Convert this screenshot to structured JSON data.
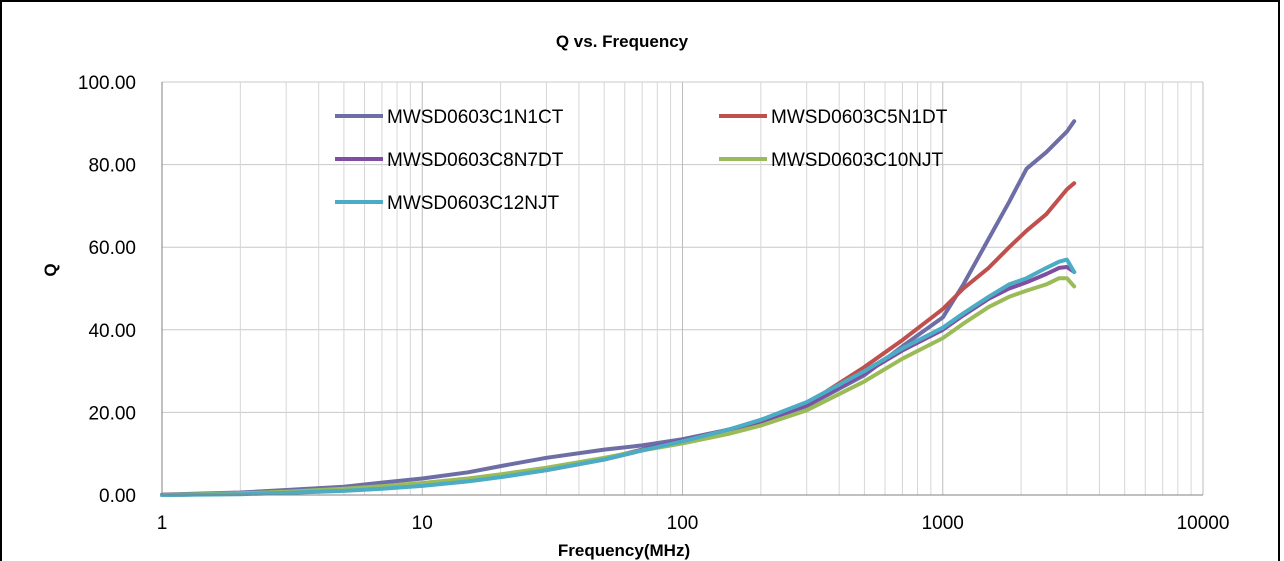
{
  "chart_data": {
    "type": "line",
    "title": "Q  vs.  Frequency",
    "xlabel": "Frequency(MHz)",
    "ylabel": "Q",
    "xscale": "log",
    "xlim": [
      1,
      10000
    ],
    "ylim": [
      0,
      100
    ],
    "grid": true,
    "legend_position": "top-left-inside",
    "x_ticks": [
      "1",
      "10",
      "100",
      "1000",
      "10000"
    ],
    "y_ticks": [
      "0.00",
      "20.00",
      "40.00",
      "60.00",
      "80.00",
      "100.00"
    ],
    "series": [
      {
        "name": "MWSD0603C1N1CT",
        "color": "#6e6ea6",
        "x": [
          1,
          2,
          3,
          5,
          7,
          10,
          15,
          20,
          30,
          50,
          70,
          100,
          150,
          200,
          300,
          500,
          700,
          1000,
          1200,
          1500,
          1800,
          2100,
          2500,
          3000,
          3200
        ],
        "y": [
          0.1,
          0.6,
          1.2,
          2.0,
          3.0,
          4.0,
          5.5,
          7.0,
          9.0,
          11.0,
          12.0,
          13.5,
          15.8,
          17.8,
          21.5,
          29,
          36,
          43,
          51,
          62,
          71,
          79,
          83,
          88,
          90.5
        ]
      },
      {
        "name": "MWSD0603C5N1DT",
        "color": "#c0504d",
        "x": [
          1,
          2,
          3,
          5,
          7,
          10,
          15,
          20,
          30,
          50,
          70,
          100,
          150,
          200,
          300,
          500,
          700,
          1000,
          1200,
          1500,
          1800,
          2100,
          2500,
          3000,
          3200
        ],
        "y": [
          0.0,
          0.3,
          0.6,
          1.1,
          1.6,
          2.3,
          3.4,
          4.4,
          6.0,
          8.6,
          10.8,
          13.2,
          15.8,
          17.8,
          22,
          31,
          37.5,
          45,
          50,
          55,
          60,
          64,
          68,
          74,
          75.5
        ]
      },
      {
        "name": "MWSD0603C8N7DT",
        "color": "#7f4ea0",
        "x": [
          1,
          2,
          3,
          5,
          7,
          10,
          15,
          20,
          30,
          50,
          70,
          100,
          150,
          200,
          300,
          500,
          700,
          1000,
          1200,
          1500,
          1800,
          2100,
          2500,
          2800,
          3000,
          3200
        ],
        "y": [
          0.0,
          0.3,
          0.6,
          1.1,
          1.6,
          2.4,
          3.5,
          4.5,
          6.2,
          8.8,
          11.0,
          13.2,
          15.8,
          17.8,
          21.8,
          29.5,
          35,
          40,
          43.5,
          47.5,
          50,
          51.5,
          53.5,
          55,
          55.2,
          54
        ]
      },
      {
        "name": "MWSD0603C10NJT",
        "color": "#9bbb59",
        "x": [
          1,
          2,
          3,
          5,
          7,
          10,
          15,
          20,
          30,
          50,
          70,
          100,
          150,
          200,
          300,
          500,
          700,
          1000,
          1200,
          1500,
          1800,
          2100,
          2500,
          2800,
          3000,
          3200
        ],
        "y": [
          0.0,
          0.4,
          0.8,
          1.5,
          2.1,
          2.9,
          4.0,
          5.0,
          6.6,
          9.0,
          10.8,
          12.5,
          14.8,
          16.8,
          20.5,
          27.5,
          33,
          38,
          41.5,
          45.5,
          48,
          49.5,
          51,
          52.5,
          52.5,
          50.5
        ]
      },
      {
        "name": "MWSD0603C12NJT",
        "color": "#4bacc6",
        "x": [
          1,
          2,
          3,
          5,
          7,
          10,
          15,
          20,
          30,
          50,
          70,
          100,
          150,
          200,
          300,
          500,
          700,
          1000,
          1200,
          1500,
          1800,
          2100,
          2500,
          2800,
          3000,
          3200
        ],
        "y": [
          0.0,
          0.2,
          0.5,
          1.0,
          1.5,
          2.2,
          3.3,
          4.3,
          6.0,
          8.6,
          10.8,
          13.0,
          15.8,
          18.2,
          22.5,
          30,
          35.5,
          40.5,
          44,
          48,
          51,
          52.5,
          55,
          56.5,
          57,
          54
        ]
      }
    ]
  }
}
